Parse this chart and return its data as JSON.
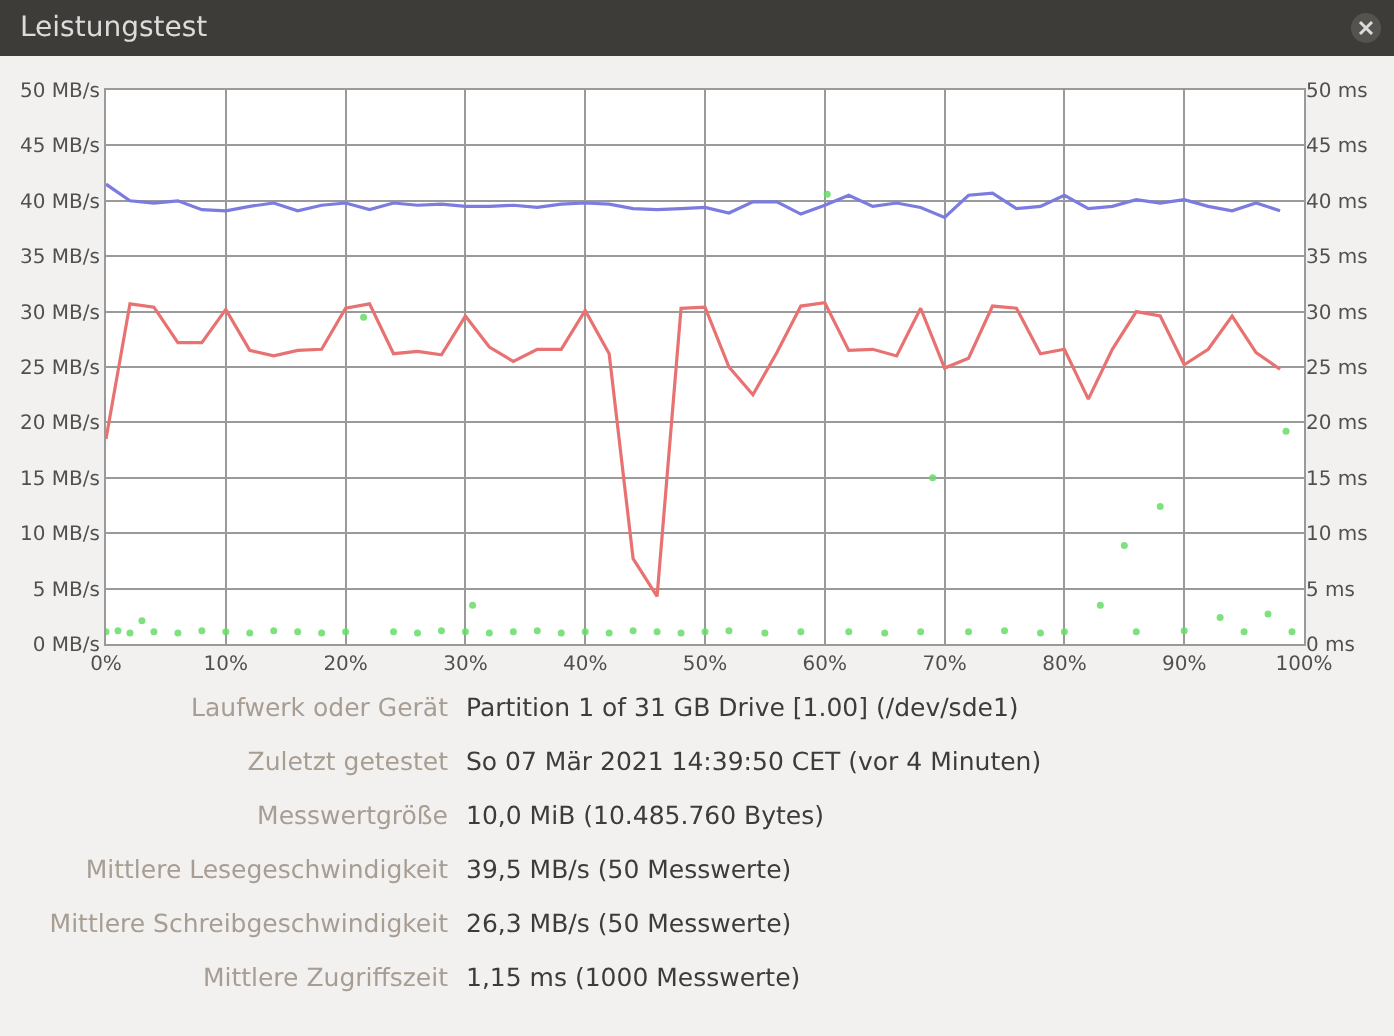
{
  "chart_data": {
    "type": "line",
    "title": "Leistungstest",
    "x": [
      0,
      2,
      4,
      6,
      8,
      10,
      12,
      14,
      16,
      18,
      20,
      22,
      24,
      26,
      28,
      30,
      32,
      34,
      36,
      38,
      40,
      42,
      44,
      46,
      48,
      50,
      52,
      54,
      56,
      58,
      60,
      62,
      64,
      66,
      68,
      70,
      72,
      74,
      76,
      78,
      80,
      82,
      84,
      86,
      88,
      90,
      92,
      94,
      96,
      98
    ],
    "series": [
      {
        "color": "#7b7be0",
        "values": [
          41.5,
          40,
          39.8,
          40,
          39.2,
          39.1,
          39.5,
          39.8,
          39.1,
          39.6,
          39.8,
          39.2,
          39.8,
          39.6,
          39.7,
          39.5,
          39.5,
          39.6,
          39.4,
          39.7,
          39.8,
          39.7,
          39.3,
          39.2,
          39.3,
          39.4,
          38.9,
          39.9,
          39.9,
          38.8,
          39.6,
          40.5,
          39.5,
          39.8,
          39.4,
          38.5,
          40.5,
          40.7,
          39.3,
          39.5,
          40.5,
          39.3,
          39.5,
          40.1,
          39.8,
          40.1,
          39.5,
          39.1,
          39.8,
          39.1
        ]
      },
      {
        "color": "#e87272",
        "values": [
          18.5,
          30.7,
          30.4,
          27.2,
          27.2,
          30.2,
          26.5,
          26,
          26.5,
          26.6,
          30.3,
          30.7,
          26.2,
          26.4,
          26.1,
          29.6,
          26.8,
          25.5,
          26.6,
          26.6,
          30.1,
          26.2,
          7.7,
          4.3,
          30.3,
          30.4,
          25,
          22.5,
          26.3,
          30.5,
          30.8,
          26.5,
          26.6,
          26,
          30.3,
          24.9,
          25.8,
          30.5,
          30.3,
          26.2,
          26.6,
          22.1,
          26.6,
          30,
          29.6,
          25.2,
          26.6,
          29.6,
          26.3,
          24.8
        ]
      },
      {
        "type": "scatter",
        "axis": "y2",
        "marker": "circle",
        "color": "#66dd66",
        "x": [
          0,
          1,
          2,
          3,
          4,
          6,
          8,
          10,
          12,
          14,
          16,
          18,
          20,
          21.5,
          24,
          26,
          28,
          30,
          30.6,
          32,
          34,
          36,
          38,
          40,
          42,
          44,
          46,
          48,
          50,
          52,
          55,
          58,
          60.2,
          62,
          65,
          68,
          69,
          72,
          75,
          78,
          80,
          83,
          85,
          86,
          88,
          90,
          93,
          95,
          97,
          98.5,
          99
        ],
        "values": [
          1.1,
          1.2,
          1.0,
          2.1,
          1.1,
          1.0,
          1.2,
          1.1,
          1.0,
          1.2,
          1.1,
          1.0,
          1.1,
          29.5,
          1.1,
          1.0,
          1.2,
          1.1,
          3.5,
          1.0,
          1.1,
          1.2,
          1.0,
          1.1,
          1.0,
          1.2,
          1.1,
          1.0,
          1.1,
          1.2,
          1.0,
          1.1,
          40.6,
          1.1,
          1.0,
          1.1,
          15,
          1.1,
          1.2,
          1.0,
          1.1,
          3.5,
          8.9,
          1.1,
          12.4,
          1.2,
          2.4,
          1.1,
          2.7,
          19.2,
          1.1
        ]
      }
    ],
    "xlim": [
      0,
      100
    ],
    "xticks": [
      {
        "value": 0,
        "label": "0%"
      },
      {
        "value": 10,
        "label": "10%"
      },
      {
        "value": 20,
        "label": "20%"
      },
      {
        "value": 30,
        "label": "30%"
      },
      {
        "value": 40,
        "label": "40%"
      },
      {
        "value": 50,
        "label": "50%"
      },
      {
        "value": 60,
        "label": "60%"
      },
      {
        "value": 70,
        "label": "70%"
      },
      {
        "value": 80,
        "label": "80%"
      },
      {
        "value": 90,
        "label": "90%"
      },
      {
        "value": 100,
        "label": "100%"
      }
    ],
    "ylim": [
      0,
      50
    ],
    "yticks": [
      {
        "value": 0,
        "label": "0 MB/s"
      },
      {
        "value": 5,
        "label": "5 MB/s"
      },
      {
        "value": 10,
        "label": "10 MB/s"
      },
      {
        "value": 15,
        "label": "15 MB/s"
      },
      {
        "value": 20,
        "label": "20 MB/s"
      },
      {
        "value": 25,
        "label": "25 MB/s"
      },
      {
        "value": 30,
        "label": "30 MB/s"
      },
      {
        "value": 35,
        "label": "35 MB/s"
      },
      {
        "value": 40,
        "label": "40 MB/s"
      },
      {
        "value": 45,
        "label": "45 MB/s"
      },
      {
        "value": 50,
        "label": "50 MB/s"
      }
    ],
    "y2lim": [
      0,
      50
    ],
    "y2ticks": [
      {
        "value": 0,
        "label": "0 ms"
      },
      {
        "value": 5,
        "label": "5 ms"
      },
      {
        "value": 10,
        "label": "10 ms"
      },
      {
        "value": 15,
        "label": "15 ms"
      },
      {
        "value": 20,
        "label": "20 ms"
      },
      {
        "value": 25,
        "label": "25 ms"
      },
      {
        "value": 30,
        "label": "30 ms"
      },
      {
        "value": 35,
        "label": "35 ms"
      },
      {
        "value": 40,
        "label": "40 ms"
      },
      {
        "value": 45,
        "label": "45 ms"
      },
      {
        "value": 50,
        "label": "50 ms"
      }
    ],
    "grid": true,
    "legend": false,
    "line_style": "solid",
    "annotations": [
      "Laufwerk oder Gerät",
      "Partition 1 of 31 GB Drive [1.00] (/dev/sde1)",
      "Zuletzt getestet",
      "So 07 Mär 2021 14:39:50 CET (vor 4 Minuten)",
      "Messwertgröße",
      "10,0 MiB (10.485.760 Bytes)",
      "Mittlere Lesegeschwindigkeit",
      "39,5 MB/s (50 Messwerte)",
      "Mittlere Schreibgeschwindigkeit",
      "26,3 MB/s (50 Messwerte)",
      "Mittlere Zugriffszeit",
      "1,15 ms (1000 Messwerte)"
    ]
  }
}
